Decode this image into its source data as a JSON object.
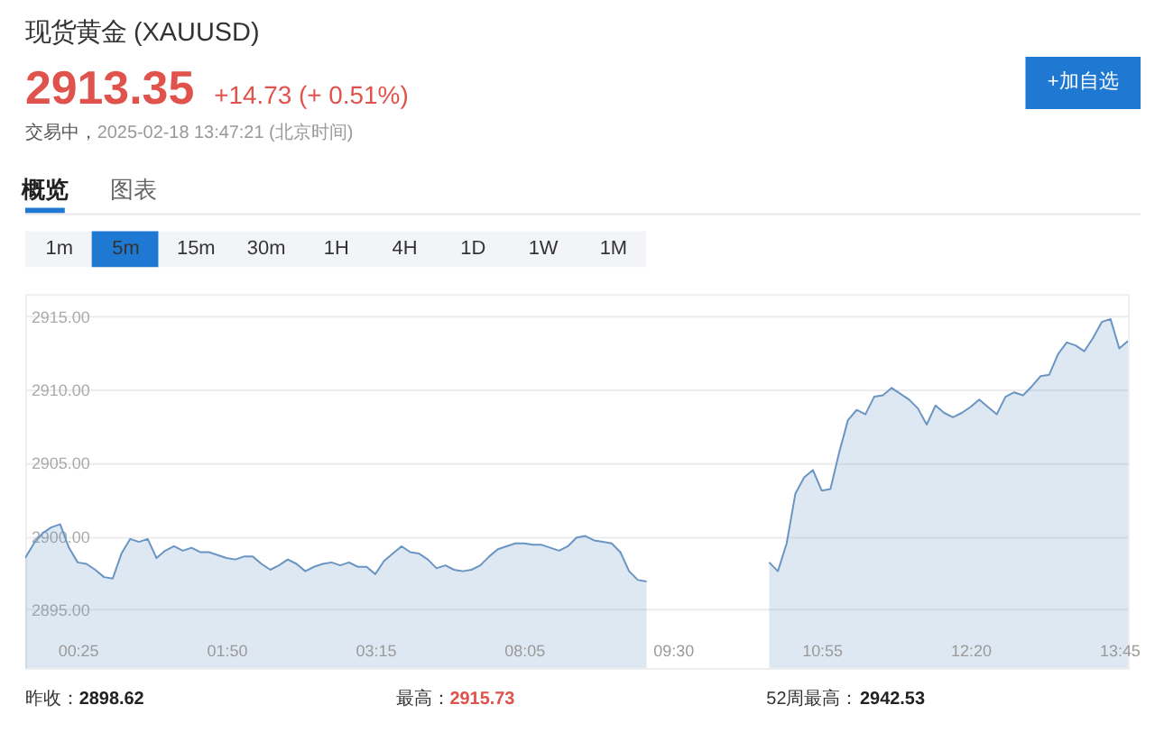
{
  "chart_data": {
    "type": "area",
    "title": "现货黄金 (XAUUSD)",
    "categories": [
      null,
      null,
      null,
      null,
      null,
      null,
      "00:25",
      null,
      null,
      null,
      null,
      null,
      null,
      null,
      null,
      null,
      null,
      null,
      null,
      null,
      null,
      null,
      null,
      "01:50",
      null,
      null,
      null,
      null,
      null,
      null,
      null,
      null,
      null,
      null,
      null,
      null,
      null,
      null,
      null,
      null,
      "03:15",
      null,
      null,
      null,
      null,
      null,
      null,
      null,
      null,
      null,
      null,
      null,
      null,
      null,
      null,
      null,
      null,
      "08:05",
      null,
      null,
      null,
      null,
      null,
      null,
      null,
      null,
      null,
      null,
      null,
      null,
      null,
      null,
      null,
      null,
      "09:30",
      null,
      null,
      null,
      null,
      null,
      null,
      null,
      null,
      null,
      null,
      null,
      null,
      null,
      null,
      null,
      null,
      "10:55",
      null,
      null,
      null,
      null,
      null,
      null,
      null,
      null,
      null,
      null,
      null,
      null,
      null,
      null,
      null,
      null,
      "12:20",
      null,
      null,
      null,
      null,
      null,
      null,
      null,
      null,
      null,
      null,
      null,
      null,
      null,
      null,
      null,
      null,
      "13:45",
      null
    ],
    "series": [
      {
        "color": "#6a95c2",
        "values": [
          2898.5,
          2899.5,
          2900.2,
          2900.6,
          2900.8,
          2899.2,
          2898.2,
          2898.1,
          2897.7,
          2897.2,
          2897.1,
          2898.8,
          2899.8,
          2899.6,
          2899.8,
          2898.5,
          2899.0,
          2899.3,
          2899.0,
          2899.2,
          2898.9,
          2898.9,
          2898.7,
          2898.5,
          2898.4,
          2898.6,
          2898.6,
          2898.1,
          2897.7,
          2898.0,
          2898.4,
          2898.1,
          2897.6,
          2897.9,
          2898.1,
          2898.2,
          2898.0,
          2898.2,
          2897.9,
          2897.9,
          2897.4,
          2898.3,
          2898.8,
          2899.3,
          2898.9,
          2898.8,
          2898.4,
          2897.8,
          2898.0,
          2897.7,
          2897.6,
          2897.7,
          2898.0,
          2898.6,
          2899.1,
          2899.3,
          2899.5,
          2899.5,
          2899.4,
          2899.4,
          2899.2,
          2899.0,
          2899.3,
          2899.9,
          2900.0,
          2899.7,
          2899.6,
          2899.5,
          2898.9,
          2897.6,
          2897.0,
          2896.9,
          null,
          null,
          null,
          null,
          null,
          null,
          null,
          null,
          null,
          null,
          null,
          null,
          null,
          2898.2,
          2897.6,
          2899.5,
          2902.9,
          2904.0,
          2904.5,
          2903.1,
          2903.2,
          2905.7,
          2907.9,
          2908.6,
          2908.3,
          2909.5,
          2909.6,
          2910.1,
          2909.7,
          2909.3,
          2908.7,
          2907.6,
          2908.9,
          2908.4,
          2908.1,
          2908.4,
          2908.8,
          2909.3,
          2908.8,
          2908.3,
          2909.5,
          2909.8,
          2909.6,
          2910.2,
          2910.9,
          2911.0,
          2912.4,
          2913.2,
          2913.0,
          2912.6,
          2913.5,
          2914.6,
          2914.8,
          2912.8,
          2913.3
        ]
      }
    ],
    "ylim": [
      2891,
      2916.5
    ],
    "yticks": [
      {
        "value": 2895,
        "label": "2895.00"
      },
      {
        "value": 2900,
        "label": "2900.00"
      },
      {
        "value": 2905,
        "label": "2905.00"
      },
      {
        "value": 2910,
        "label": "2910.00"
      },
      {
        "value": 2915,
        "label": "2915.00"
      }
    ],
    "grid": "y",
    "annotations": [
      "2913.35",
      "+14.73 (+ 0.51%)",
      "交易中，",
      "2025-02-18 13:47:21 (北京时间)",
      "+加自选",
      "概览",
      "图表",
      "1m",
      "5m",
      "15m",
      "30m",
      "1H",
      "4H",
      "1D",
      "1W",
      "1M",
      "昨收：",
      "2898.62",
      "最高：",
      "2915.73",
      "52周最高：",
      "2942.53"
    ]
  }
}
